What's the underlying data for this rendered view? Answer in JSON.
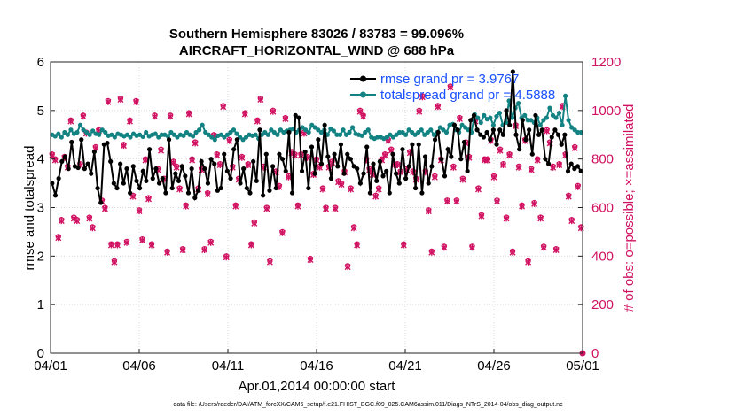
{
  "colors": {
    "rmse": "#000000",
    "spread": "#138282",
    "obs": "#d01060",
    "legend_text": "#1a50ff",
    "grid": "#d9d9d9"
  },
  "chart_data": {
    "type": "line",
    "title": "Southern Hemisphere 83026 / 83783 = 99.096%",
    "subtitle": "AIRCRAFT_HORIZONTAL_WIND @ 688 hPa",
    "xlabel": "Apr.01,2014 00:00:00 start",
    "ylabel_left": "rmse and totalspread",
    "ylabel_right": "# of obs: o=possible; ×=assimilated",
    "xlim": [
      0,
      30
    ],
    "ylim_left": [
      0,
      6
    ],
    "ylim_right": [
      0,
      1200
    ],
    "x_ticks": [
      0,
      5,
      10,
      15,
      20,
      25,
      30
    ],
    "x_tick_labels": [
      "04/01",
      "04/06",
      "04/11",
      "04/16",
      "04/21",
      "04/26",
      "05/01"
    ],
    "y_ticks_left": [
      "0",
      "1",
      "2",
      "3",
      "4",
      "5",
      "6"
    ],
    "y_ticks_right": [
      "0",
      "200",
      "400",
      "600",
      "800",
      "1000",
      "1200"
    ],
    "grid": true,
    "legend_position": "top-right",
    "legend": [
      "rmse grand pr = 3.9767",
      "totalspread grand pr = 4.5888"
    ],
    "footer": "data file: /Users/raeder/DAI/ATM_forcXX/CAM6_setup/f.e21.FHIST_BGC.f09_025.CAM6assim.011/Diags_NTrS_2014-04/obs_diag_output.nc",
    "series": [
      {
        "name": "rmse",
        "axis": "left",
        "values": [
          3.5,
          3.25,
          3.6,
          3.95,
          4.05,
          3.8,
          4.35,
          3.85,
          3.82,
          4.4,
          3.8,
          3.9,
          3.7,
          4.15,
          3.4,
          3.1,
          4.3,
          4.33,
          3.95,
          3.5,
          3.4,
          3.9,
          3.5,
          3.8,
          3.3,
          3.85,
          3.55,
          3.4,
          3.75,
          3.55,
          4.2,
          3.6,
          3.8,
          3.5,
          3.6,
          3.3,
          4.4,
          3.4,
          3.7,
          3.55,
          3.85,
          3.65,
          3.3,
          3.8,
          3.2,
          3.35,
          3.95,
          3.8,
          3.5,
          4.0,
          3.9,
          3.35,
          3.4,
          4.1,
          3.75,
          3.6,
          4.2,
          4.4,
          3.5,
          3.8,
          3.4,
          3.3,
          3.95,
          3.55,
          4.6,
          3.25,
          4.1,
          3.35,
          3.85,
          3.4,
          4.1,
          4.0,
          3.75,
          4.55,
          3.3,
          4.9,
          4.85,
          3.75,
          4.15,
          3.4,
          4.25,
          3.7,
          4.4,
          3.9,
          4.7,
          4.05,
          3.6,
          4.1,
          3.85,
          4.3,
          3.7,
          4.1,
          4.0,
          3.85,
          3.8,
          3.5,
          3.7,
          4.25,
          3.3,
          3.9,
          3.55,
          3.95,
          3.65,
          3.75,
          3.3,
          4.1,
          3.7,
          3.5,
          4.2,
          3.6,
          3.85,
          4.3,
          3.4,
          4.3,
          3.3,
          4.05,
          3.5,
          3.85,
          4.4,
          4.55,
          4.0,
          3.65,
          4.2,
          4.05,
          4.7,
          4.6,
          4.0,
          4.35,
          3.75,
          4.8,
          4.9,
          4.6,
          4.5,
          4.45,
          4.55,
          4.4,
          4.6,
          4.3,
          4.6,
          4.5,
          5.0,
          4.7,
          5.8,
          4.5,
          4.2,
          4.8,
          4.4,
          4.6,
          4.1,
          4.9,
          4.5,
          4.6,
          4.0,
          3.9,
          4.45,
          4.6,
          4.5,
          4.3,
          4.5,
          3.75,
          3.9,
          3.8,
          3.85,
          3.75
        ]
      },
      {
        "name": "totalspread",
        "axis": "left",
        "values": [
          4.5,
          4.47,
          4.52,
          4.45,
          4.55,
          4.5,
          4.6,
          4.52,
          4.55,
          4.7,
          4.6,
          4.55,
          4.5,
          4.58,
          4.52,
          4.5,
          4.6,
          4.55,
          4.48,
          4.5,
          4.45,
          4.52,
          4.5,
          4.47,
          4.5,
          4.45,
          4.52,
          4.48,
          4.5,
          4.46,
          4.55,
          4.47,
          4.5,
          4.52,
          4.45,
          4.5,
          4.5,
          4.47,
          4.55,
          4.5,
          4.45,
          4.5,
          4.48,
          4.55,
          4.5,
          4.47,
          4.55,
          4.6,
          4.7,
          4.55,
          4.5,
          4.45,
          4.4,
          4.48,
          4.5,
          4.45,
          4.5,
          4.55,
          4.6,
          4.52,
          4.45,
          4.4,
          4.45,
          4.5,
          4.48,
          4.5,
          4.42,
          4.5,
          4.55,
          4.5,
          4.6,
          4.55,
          4.5,
          4.6,
          4.55,
          4.58,
          4.6,
          4.62,
          4.55,
          4.6,
          4.65,
          4.6,
          4.55,
          4.7,
          4.65,
          4.6,
          4.55,
          4.6,
          4.5,
          4.62,
          4.58,
          4.5,
          4.5,
          4.6,
          4.5,
          4.55,
          4.65,
          4.52,
          4.5,
          4.48,
          4.55,
          4.6,
          4.45,
          4.42,
          4.45,
          4.45,
          4.42,
          4.45,
          4.5,
          4.45,
          4.5,
          4.55,
          4.55,
          4.5,
          4.6,
          4.55,
          4.5,
          4.55,
          4.6,
          4.5,
          4.55,
          4.6,
          4.5,
          4.55,
          4.65,
          4.6,
          4.55,
          4.7,
          4.72,
          4.6,
          4.55,
          4.7,
          4.65,
          4.6,
          4.55,
          4.92,
          4.85,
          4.75,
          4.9,
          4.82,
          4.85,
          4.7,
          4.88,
          4.95,
          4.7,
          4.75,
          5.2,
          4.85,
          5.05,
          5.15,
          4.85,
          4.9,
          4.8,
          4.8,
          4.75,
          4.85,
          4.7,
          4.8,
          4.85,
          5.05,
          4.9,
          4.85,
          4.95,
          4.7,
          5.3,
          4.8,
          4.65,
          4.6,
          4.55,
          4.55
        ]
      },
      {
        "name": "obs_possible",
        "axis": "right",
        "values": [
          820,
          800,
          480,
          550,
          810,
          770,
          960,
          560,
          550,
          780,
          980,
          910,
          560,
          520,
          850,
          920,
          630,
          600,
          1040,
          450,
          380,
          450,
          1050,
          860,
          460,
          960,
          650,
          1040,
          590,
          470,
          800,
          640,
          450,
          980,
          760,
          840,
          720,
          420,
          980,
          790,
          770,
          680,
          430,
          610,
          990,
          800,
          870,
          680,
          760,
          430,
          660,
          460,
          900,
          820,
          780,
          1020,
          400,
          880,
          770,
          610,
          720,
          810,
          990,
          780,
          450,
          540,
          960,
          1050,
          770,
          600,
          380,
          1000,
          750,
          690,
          500,
          970,
          730,
          830,
          820,
          610,
          820,
          910,
          810,
          390,
          740,
          800,
          770,
          680,
          600,
          770,
          790,
          600,
          710,
          700,
          750,
          360,
          680,
          520,
          450,
          1000,
          980,
          800,
          760,
          740,
          650,
          680,
          800,
          820,
          880,
          840,
          780,
          780,
          750,
          450,
          760,
          830,
          750,
          720,
          1000,
          1060,
          750,
          590,
          420,
          730,
          1020,
          800,
          440,
          630,
          1100,
          770,
          630,
          970,
          720,
          870,
          810,
          440,
          960,
          680,
          570,
          800,
          800,
          880,
          730,
          630,
          840,
          780,
          560,
          820,
          420,
          940,
          770,
          610,
          880,
          380,
          760,
          620,
          800,
          560,
          440,
          920,
          870,
          770,
          430,
          780,
          1020,
          820,
          650,
          550,
          850,
          690,
          520
        ]
      },
      {
        "name": "obs_assimilated",
        "axis": "right",
        "values": [
          815,
          795,
          475,
          545,
          805,
          765,
          955,
          555,
          545,
          775,
          975,
          905,
          555,
          515,
          845,
          915,
          625,
          595,
          1035,
          445,
          375,
          445,
          1045,
          855,
          455,
          955,
          645,
          1035,
          585,
          465,
          795,
          635,
          445,
          975,
          755,
          835,
          715,
          415,
          975,
          785,
          765,
          675,
          425,
          605,
          985,
          795,
          865,
          675,
          755,
          425,
          655,
          455,
          895,
          815,
          775,
          1015,
          395,
          875,
          765,
          605,
          715,
          805,
          985,
          775,
          445,
          535,
          955,
          1045,
          765,
          595,
          375,
          995,
          745,
          685,
          495,
          965,
          725,
          825,
          815,
          605,
          815,
          905,
          805,
          385,
          735,
          795,
          765,
          675,
          595,
          765,
          785,
          595,
          705,
          695,
          745,
          355,
          675,
          515,
          445,
          995,
          975,
          795,
          755,
          735,
          645,
          675,
          795,
          815,
          875,
          835,
          775,
          775,
          745,
          445,
          755,
          825,
          745,
          715,
          995,
          1055,
          745,
          585,
          415,
          725,
          1015,
          795,
          435,
          625,
          1095,
          765,
          625,
          965,
          715,
          865,
          805,
          435,
          955,
          675,
          565,
          795,
          795,
          875,
          725,
          625,
          835,
          775,
          555,
          815,
          415,
          935,
          765,
          605,
          875,
          375,
          755,
          615,
          795,
          555,
          435,
          915,
          865,
          765,
          425,
          775,
          1015,
          815,
          645,
          545,
          845,
          685,
          515
        ]
      }
    ]
  }
}
